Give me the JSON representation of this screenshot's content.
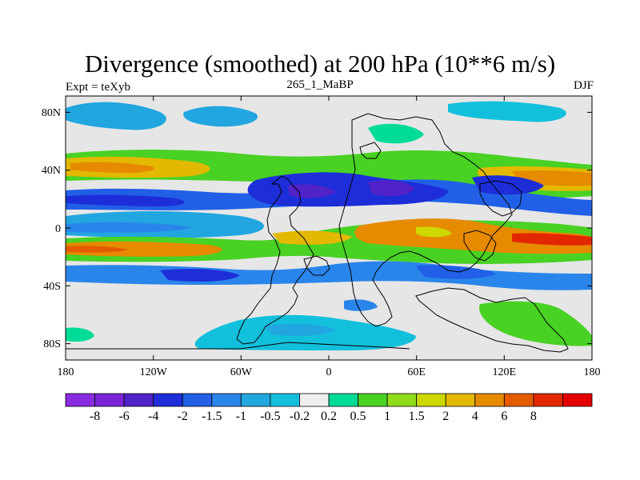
{
  "title": "Divergence (smoothed) at 200 hPa (10**6 m/s)",
  "left_label": "Expt = teXyb",
  "center_label": "265_1_MaBP",
  "right_label": "DJF",
  "colors": {
    "background_field": "#e6e6e6",
    "colorbar": [
      "#8a2be2",
      "#7b24d6",
      "#5022c8",
      "#1d2ed8",
      "#2160e6",
      "#2a85ea",
      "#22a6e0",
      "#13c0dc",
      "#eeeeee",
      "#00dc98",
      "#49d124",
      "#8fdc1a",
      "#cdd800",
      "#e3b900",
      "#e68a00",
      "#e45b00",
      "#e32700",
      "#e50000"
    ]
  },
  "chart_data": {
    "type": "heatmap",
    "title": "Divergence (smoothed) at 200 hPa (10**6 m/s)",
    "subtitle_left": "Expt = teXyb",
    "subtitle_center": "265_1_MaBP",
    "subtitle_right": "DJF",
    "x_ticks": [
      "180",
      "120W",
      "60W",
      "0",
      "60E",
      "120E",
      "180"
    ],
    "y_ticks": [
      "80N",
      "40N",
      "0",
      "40S",
      "80S"
    ],
    "xlim": [
      -180,
      180
    ],
    "ylim": [
      -90,
      90
    ],
    "colorbar_levels": [
      "-8",
      "-6",
      "-4",
      "-2",
      "-1.5",
      "-1",
      "-0.5",
      "-0.2",
      "0.2",
      "0.5",
      "1",
      "1.5",
      "2",
      "4",
      "6",
      "8"
    ]
  }
}
